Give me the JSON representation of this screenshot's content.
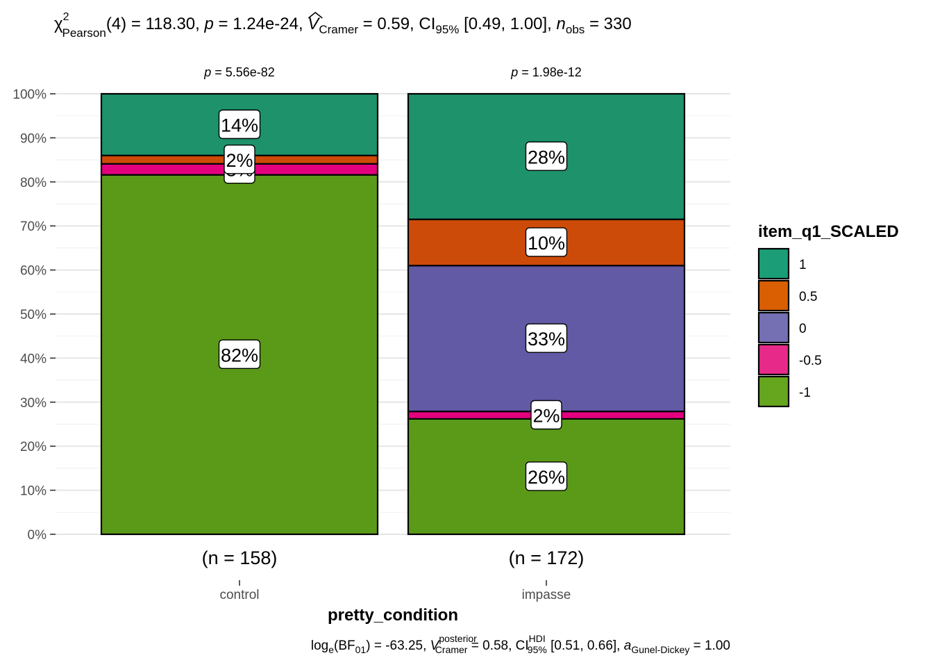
{
  "chart_data": {
    "type": "bar",
    "stacked": true,
    "percent": true,
    "subtitle": {
      "chi_symbol": "χ",
      "chi_sup": "2",
      "chi_sub": "Pearson",
      "df_part": "(4) = 118.30, ",
      "p_symbol": "p",
      "p_part": " = 1.24e-24, ",
      "v_symbol": "V",
      "v_sub": "Cramer",
      "v_part": " = 0.59, CI",
      "ci_sub": "95%",
      "ci_part": " [0.49, 1.00], ",
      "n_symbol": "n",
      "n_sub": "obs",
      "n_part": " = 330"
    },
    "caption": {
      "log_label": "log",
      "log_sub": "e",
      "bf_open": "(BF",
      "bf_sub": "01",
      "bf_part": ") = -63.25, ",
      "v_symbol": "V",
      "v_sup": "posterior",
      "v_sub": "Cramer",
      "v_part": " = 0.58, CI",
      "ci_sup": "HDI",
      "ci_sub": "95%",
      "ci_part": " [0.51, 0.66], ",
      "a_symbol": "a",
      "a_sub": "Gunel-Dickey",
      "a_part": " = 1.00"
    },
    "xlabel": "pretty_condition",
    "ylabel": "",
    "ylim": [
      0,
      100
    ],
    "yticks": [
      "0%",
      "10%",
      "20%",
      "30%",
      "40%",
      "50%",
      "60%",
      "70%",
      "80%",
      "90%",
      "100%"
    ],
    "grid": true,
    "categories": [
      "control",
      "impasse"
    ],
    "counts": [
      "(n = 158)",
      "(n = 172)"
    ],
    "facet_p_symbol": "p",
    "facet_p": [
      " = 5.56e-82",
      " = 1.98e-12"
    ],
    "legend": {
      "title": "item_q1_SCALED",
      "position": "right",
      "items": [
        {
          "label": "1",
          "color": "#1B9E77"
        },
        {
          "label": "0.5",
          "color": "#D95F02"
        },
        {
          "label": "0",
          "color": "#7570B3"
        },
        {
          "label": "-0.5",
          "color": "#E7298A"
        },
        {
          "label": "-1",
          "color": "#66A61E"
        }
      ]
    },
    "series": [
      {
        "name": "-1",
        "color": "#5A9A18",
        "values": [
          81.6,
          26.2
        ],
        "labels": [
          "82%",
          "26%"
        ]
      },
      {
        "name": "-0.5",
        "color": "#E3007F",
        "values": [
          2.5,
          1.7
        ],
        "labels": [
          "3%",
          "2%"
        ]
      },
      {
        "name": "0",
        "color": "#625AA5",
        "values": [
          0,
          33.1
        ],
        "labels": [
          "",
          "33%"
        ]
      },
      {
        "name": "0.5",
        "color": "#CD4B09",
        "values": [
          1.9,
          10.5
        ],
        "labels": [
          "2%",
          "10%"
        ]
      },
      {
        "name": "1",
        "color": "#1E926A",
        "values": [
          14.0,
          28.5
        ],
        "labels": [
          "14%",
          "28%"
        ]
      }
    ]
  }
}
